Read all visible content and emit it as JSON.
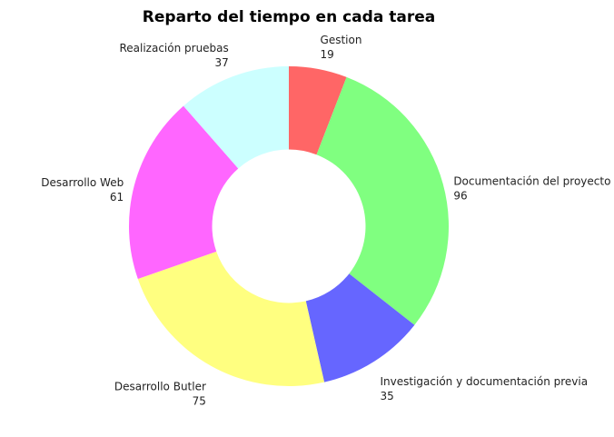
{
  "chart_data": {
    "type": "pie",
    "title": "Reparto del tiempo en cada tarea",
    "hole": 0.48,
    "slices": [
      {
        "label": "Gestion",
        "value": 19,
        "color": "#ff6666"
      },
      {
        "label": "Documentación del proyecto",
        "value": 96,
        "color": "#80ff80"
      },
      {
        "label": "Investigación y documentación previa",
        "value": 35,
        "color": "#6666ff"
      },
      {
        "label": "Desarrollo Butler",
        "value": 75,
        "color": "#ffff80"
      },
      {
        "label": "Desarrollo Web",
        "value": 61,
        "color": "#ff66ff"
      },
      {
        "label": "Realización pruebas",
        "value": 37,
        "color": "#ccffff"
      }
    ]
  }
}
